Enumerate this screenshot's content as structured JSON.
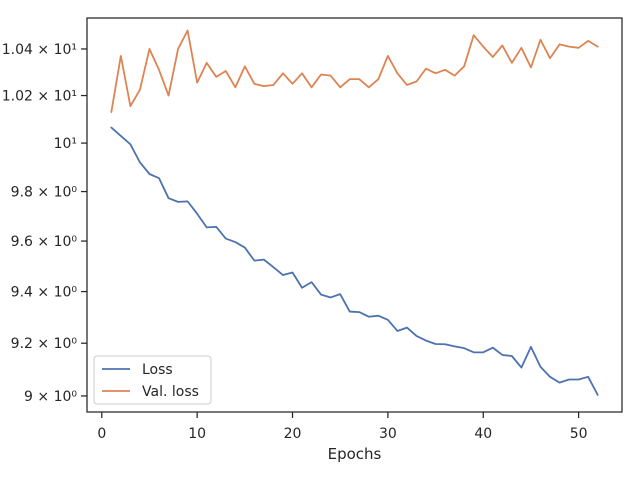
{
  "chart_data": {
    "type": "line",
    "title": "",
    "xlabel": "Epochs",
    "ylabel": "",
    "yscale": "log",
    "grid": false,
    "legend_position": "bottom-left",
    "xlim": [
      -1.55,
      54.55
    ],
    "ylim": [
      8.94,
      10.535
    ],
    "xticks": [
      {
        "value": 0,
        "label": "0"
      },
      {
        "value": 10,
        "label": "10"
      },
      {
        "value": 20,
        "label": "20"
      },
      {
        "value": 30,
        "label": "30"
      },
      {
        "value": 40,
        "label": "40"
      },
      {
        "value": 50,
        "label": "50"
      }
    ],
    "yticks": [
      {
        "value": 9.0,
        "label": "9 × 10⁰"
      },
      {
        "value": 9.2,
        "label": "9.2 × 10⁰"
      },
      {
        "value": 9.4,
        "label": "9.4 × 10⁰"
      },
      {
        "value": 9.6,
        "label": "9.6 × 10⁰"
      },
      {
        "value": 9.8,
        "label": "9.8 × 10⁰"
      },
      {
        "value": 10.0,
        "label": "10¹"
      },
      {
        "value": 10.2,
        "label": "1.02 × 10¹"
      },
      {
        "value": 10.4,
        "label": "1.04 × 10¹"
      }
    ],
    "x": [
      1,
      2,
      3,
      4,
      5,
      6,
      7,
      8,
      9,
      10,
      11,
      12,
      13,
      14,
      15,
      16,
      17,
      18,
      19,
      20,
      21,
      22,
      23,
      24,
      25,
      26,
      27,
      28,
      29,
      30,
      31,
      32,
      33,
      34,
      35,
      36,
      37,
      38,
      39,
      40,
      41,
      42,
      43,
      44,
      45,
      46,
      47,
      48,
      49,
      50,
      51,
      52
    ],
    "series": [
      {
        "name": "Loss",
        "color": "#4c72b0",
        "values": [
          10.065,
          10.03,
          9.995,
          9.92,
          9.872,
          9.855,
          9.773,
          9.758,
          9.76,
          9.71,
          9.655,
          9.657,
          9.61,
          9.596,
          9.574,
          9.522,
          9.526,
          9.496,
          9.465,
          9.475,
          9.415,
          9.437,
          9.388,
          9.377,
          9.39,
          9.322,
          9.32,
          9.302,
          9.306,
          9.29,
          9.247,
          9.26,
          9.228,
          9.21,
          9.197,
          9.196,
          9.188,
          9.181,
          9.165,
          9.165,
          9.183,
          9.155,
          9.151,
          9.107,
          9.186,
          9.11,
          9.072,
          9.05,
          9.062,
          9.062,
          9.072,
          9.004
        ]
      },
      {
        "name": "Val. loss",
        "color": "#dd8452",
        "values": [
          10.13,
          10.37,
          10.155,
          10.225,
          10.4,
          10.31,
          10.2,
          10.4,
          10.48,
          10.255,
          10.34,
          10.28,
          10.305,
          10.235,
          10.325,
          10.25,
          10.24,
          10.245,
          10.295,
          10.25,
          10.295,
          10.235,
          10.29,
          10.285,
          10.235,
          10.27,
          10.27,
          10.235,
          10.27,
          10.37,
          10.295,
          10.245,
          10.26,
          10.315,
          10.295,
          10.31,
          10.285,
          10.325,
          10.46,
          10.41,
          10.365,
          10.415,
          10.34,
          10.405,
          10.32,
          10.44,
          10.36,
          10.42,
          10.41,
          10.405,
          10.435,
          10.41
        ]
      }
    ]
  }
}
